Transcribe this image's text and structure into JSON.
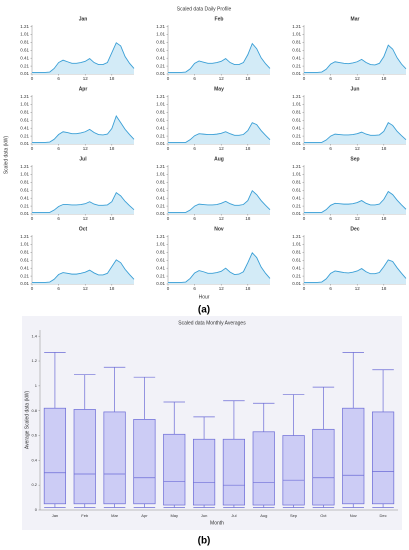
{
  "chart_data": [
    {
      "type": "small_multiples",
      "title": "Scaled data Daily Profile",
      "xlabel": "Hour",
      "ylabel": "Scaled data (kW)",
      "caption": "(a)",
      "x": [
        0,
        1,
        2,
        3,
        4,
        5,
        6,
        7,
        8,
        9,
        10,
        11,
        12,
        13,
        14,
        15,
        16,
        17,
        18,
        19,
        20,
        21,
        22,
        23
      ],
      "xlim": [
        0,
        23
      ],
      "xticks": [
        0,
        6,
        12,
        18
      ],
      "ylim": [
        0.01,
        1.25
      ],
      "yticks": [
        0.01,
        0.21,
        0.41,
        0.61,
        0.81,
        1.01,
        1.21
      ],
      "color": "#3a9fd6",
      "fill": "#d3ebf7",
      "panels": [
        {
          "title": "Jan",
          "values": [
            0.05,
            0.05,
            0.05,
            0.05,
            0.06,
            0.15,
            0.3,
            0.36,
            0.32,
            0.28,
            0.28,
            0.3,
            0.33,
            0.4,
            0.3,
            0.25,
            0.25,
            0.3,
            0.55,
            0.8,
            0.72,
            0.45,
            0.28,
            0.15
          ]
        },
        {
          "title": "Feb",
          "values": [
            0.05,
            0.05,
            0.05,
            0.05,
            0.06,
            0.14,
            0.28,
            0.34,
            0.31,
            0.28,
            0.28,
            0.3,
            0.33,
            0.4,
            0.3,
            0.25,
            0.25,
            0.3,
            0.5,
            0.78,
            0.65,
            0.42,
            0.27,
            0.15
          ]
        },
        {
          "title": "Mar",
          "values": [
            0.05,
            0.05,
            0.05,
            0.05,
            0.06,
            0.13,
            0.26,
            0.32,
            0.3,
            0.28,
            0.27,
            0.29,
            0.32,
            0.38,
            0.3,
            0.25,
            0.24,
            0.28,
            0.45,
            0.74,
            0.64,
            0.42,
            0.26,
            0.14
          ]
        },
        {
          "title": "Apr",
          "values": [
            0.05,
            0.05,
            0.05,
            0.05,
            0.06,
            0.13,
            0.25,
            0.32,
            0.3,
            0.27,
            0.27,
            0.29,
            0.32,
            0.38,
            0.3,
            0.25,
            0.24,
            0.26,
            0.4,
            0.72,
            0.55,
            0.38,
            0.25,
            0.13
          ]
        },
        {
          "title": "May",
          "values": [
            0.05,
            0.05,
            0.05,
            0.05,
            0.05,
            0.12,
            0.22,
            0.27,
            0.26,
            0.25,
            0.25,
            0.26,
            0.28,
            0.32,
            0.27,
            0.23,
            0.23,
            0.25,
            0.35,
            0.55,
            0.5,
            0.35,
            0.23,
            0.12
          ]
        },
        {
          "title": "Jun",
          "values": [
            0.05,
            0.05,
            0.05,
            0.05,
            0.05,
            0.11,
            0.21,
            0.26,
            0.25,
            0.24,
            0.24,
            0.25,
            0.27,
            0.31,
            0.26,
            0.23,
            0.23,
            0.24,
            0.33,
            0.55,
            0.48,
            0.33,
            0.22,
            0.12
          ]
        },
        {
          "title": "Jul",
          "values": [
            0.05,
            0.05,
            0.05,
            0.05,
            0.05,
            0.11,
            0.2,
            0.25,
            0.25,
            0.24,
            0.24,
            0.25,
            0.27,
            0.32,
            0.26,
            0.23,
            0.23,
            0.24,
            0.32,
            0.55,
            0.47,
            0.33,
            0.22,
            0.12
          ]
        },
        {
          "title": "Aug",
          "values": [
            0.05,
            0.05,
            0.05,
            0.05,
            0.05,
            0.11,
            0.21,
            0.26,
            0.25,
            0.24,
            0.24,
            0.25,
            0.28,
            0.33,
            0.27,
            0.23,
            0.23,
            0.25,
            0.35,
            0.6,
            0.5,
            0.35,
            0.23,
            0.12
          ]
        },
        {
          "title": "Sep",
          "values": [
            0.05,
            0.05,
            0.05,
            0.05,
            0.05,
            0.12,
            0.23,
            0.28,
            0.27,
            0.26,
            0.26,
            0.27,
            0.3,
            0.35,
            0.28,
            0.24,
            0.24,
            0.26,
            0.38,
            0.58,
            0.5,
            0.36,
            0.24,
            0.13
          ]
        },
        {
          "title": "Oct",
          "values": [
            0.05,
            0.05,
            0.05,
            0.05,
            0.06,
            0.13,
            0.25,
            0.3,
            0.28,
            0.26,
            0.26,
            0.28,
            0.31,
            0.36,
            0.29,
            0.24,
            0.24,
            0.28,
            0.45,
            0.62,
            0.55,
            0.38,
            0.25,
            0.13
          ]
        },
        {
          "title": "Nov",
          "values": [
            0.05,
            0.05,
            0.05,
            0.05,
            0.06,
            0.15,
            0.29,
            0.35,
            0.32,
            0.28,
            0.28,
            0.3,
            0.33,
            0.41,
            0.31,
            0.25,
            0.26,
            0.32,
            0.55,
            0.8,
            0.68,
            0.44,
            0.28,
            0.15
          ]
        },
        {
          "title": "Dec",
          "values": [
            0.05,
            0.05,
            0.05,
            0.05,
            0.06,
            0.14,
            0.28,
            0.34,
            0.32,
            0.3,
            0.29,
            0.31,
            0.34,
            0.4,
            0.32,
            0.27,
            0.27,
            0.3,
            0.45,
            0.62,
            0.58,
            0.42,
            0.28,
            0.15
          ]
        }
      ]
    },
    {
      "type": "box",
      "title": "Scaled data Monthly Averages",
      "xlabel": "Month",
      "ylabel": "Average Scaled data (kW)",
      "caption": "(b)",
      "categories": [
        "Jan",
        "Feb",
        "Mar",
        "Apr",
        "May",
        "Jun",
        "Jul",
        "Aug",
        "Sep",
        "Oct",
        "Nov",
        "Dec"
      ],
      "whislo": [
        0.02,
        0.02,
        0.02,
        0.02,
        0.02,
        0.02,
        0.02,
        0.02,
        0.02,
        0.02,
        0.02,
        0.02
      ],
      "q1": [
        0.05,
        0.05,
        0.05,
        0.05,
        0.04,
        0.04,
        0.04,
        0.04,
        0.04,
        0.04,
        0.05,
        0.05
      ],
      "med": [
        0.3,
        0.29,
        0.29,
        0.26,
        0.23,
        0.22,
        0.2,
        0.22,
        0.24,
        0.26,
        0.28,
        0.31
      ],
      "q3": [
        0.82,
        0.81,
        0.79,
        0.73,
        0.61,
        0.57,
        0.57,
        0.63,
        0.6,
        0.65,
        0.82,
        0.79
      ],
      "whishi": [
        1.27,
        1.09,
        1.15,
        1.07,
        0.87,
        0.75,
        0.88,
        0.86,
        0.93,
        0.99,
        1.27,
        1.13
      ],
      "ylim": [
        0,
        1.45
      ],
      "yticks": [
        0,
        0.2,
        0.4,
        0.6,
        0.8,
        1,
        1.2,
        1.4
      ],
      "color": "#6b6bd6",
      "fill": "#ccccf5",
      "background": "#f2f2f8"
    }
  ]
}
